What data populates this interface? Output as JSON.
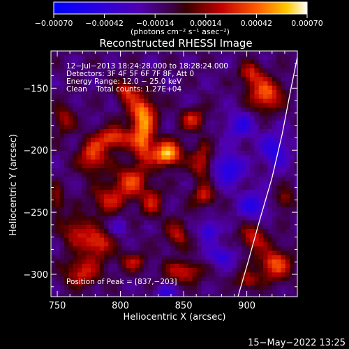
{
  "chart_data": {
    "type": "heatmap",
    "title": "Reconstructed RHESSI Image",
    "xlabel": "Heliocentric X (arcsec)",
    "ylabel": "Heliocentric Y (arcsec)",
    "xlim": [
      745,
      940
    ],
    "ylim": [
      -318,
      -120
    ],
    "x_ticks": [
      750,
      800,
      850,
      900
    ],
    "y_ticks": [
      -150,
      -200,
      -250,
      -300
    ],
    "x_tick_labels": [
      "750",
      "800",
      "850",
      "900"
    ],
    "y_tick_labels": [
      "−150",
      "−200",
      "−250",
      "−300"
    ],
    "colorbar": {
      "range": [
        -0.0007,
        0.0007
      ],
      "tick_values": [
        -0.0007,
        -0.00042,
        -0.00014,
        0.00014,
        0.00042,
        0.0007
      ],
      "tick_labels": [
        "−0.00070",
        "−0.00042",
        "−0.00014",
        "0.00014",
        "0.00042",
        "0.00070"
      ],
      "units_label": "(photons cm⁻² s⁻¹ asec⁻²)"
    },
    "annotations": [
      "12−Jul−2013 18:24:28.000 to 18:28:24.000",
      "Detectors: 3F 4F 5F 6F 7F 8F, Att 0",
      "Energy Range: 12.0 − 25.0 keV",
      "Clean    Total counts: 1.27E+04"
    ],
    "peak_label": "Position of Peak = [837,−203]",
    "peak": {
      "x": 837,
      "y": -203
    },
    "limb_arc": [
      [
        893,
        -318
      ],
      [
        901,
        -290
      ],
      [
        910,
        -257
      ],
      [
        920,
        -222
      ],
      [
        928,
        -187
      ],
      [
        935,
        -150
      ],
      [
        940,
        -125
      ]
    ],
    "sources": [
      {
        "x": 837,
        "y": -203,
        "sx": 8,
        "sy": 7,
        "amp": 0.00072
      },
      {
        "x": 818,
        "y": -190,
        "sx": 6,
        "sy": 14,
        "amp": 0.00055
      },
      {
        "x": 795,
        "y": -190,
        "sx": 10,
        "sy": 6,
        "amp": 0.0005
      },
      {
        "x": 778,
        "y": -205,
        "sx": 8,
        "sy": 9,
        "amp": 0.00048
      },
      {
        "x": 808,
        "y": -225,
        "sx": 9,
        "sy": 9,
        "amp": 0.00045
      },
      {
        "x": 817,
        "y": -168,
        "sx": 8,
        "sy": 9,
        "amp": 0.00045
      },
      {
        "x": 805,
        "y": -152,
        "sx": 6,
        "sy": 6,
        "amp": 0.0004
      },
      {
        "x": 857,
        "y": -175,
        "sx": 7,
        "sy": 6,
        "amp": 0.00038
      },
      {
        "x": 865,
        "y": -210,
        "sx": 6,
        "sy": 10,
        "amp": 0.0004
      },
      {
        "x": 866,
        "y": -237,
        "sx": 6,
        "sy": 6,
        "amp": 0.00038
      },
      {
        "x": 845,
        "y": -268,
        "sx": 6,
        "sy": 8,
        "amp": 0.00035
      },
      {
        "x": 825,
        "y": -242,
        "sx": 6,
        "sy": 8,
        "amp": 0.00035
      },
      {
        "x": 790,
        "y": -240,
        "sx": 10,
        "sy": 8,
        "amp": 0.00035
      },
      {
        "x": 782,
        "y": -275,
        "sx": 8,
        "sy": 8,
        "amp": 0.00045
      },
      {
        "x": 765,
        "y": -265,
        "sx": 8,
        "sy": 9,
        "amp": 0.00035
      },
      {
        "x": 810,
        "y": -290,
        "sx": 8,
        "sy": 6,
        "amp": 0.00032
      },
      {
        "x": 850,
        "y": -298,
        "sx": 10,
        "sy": 6,
        "amp": 0.0004
      },
      {
        "x": 770,
        "y": -298,
        "sx": 10,
        "sy": 8,
        "amp": 0.0004
      },
      {
        "x": 750,
        "y": -240,
        "sx": 4,
        "sy": 8,
        "amp": 0.0003
      },
      {
        "x": 755,
        "y": -175,
        "sx": 6,
        "sy": 8,
        "amp": 0.0003
      },
      {
        "x": 915,
        "y": -155,
        "sx": 9,
        "sy": 9,
        "amp": 0.00055
      },
      {
        "x": 903,
        "y": -138,
        "sx": 6,
        "sy": 6,
        "amp": 0.0004
      },
      {
        "x": 922,
        "y": -292,
        "sx": 9,
        "sy": 9,
        "amp": 0.0005
      },
      {
        "x": 905,
        "y": -270,
        "sx": 7,
        "sy": 8,
        "amp": 0.0004
      },
      {
        "x": 930,
        "y": -240,
        "sx": 5,
        "sy": 6,
        "amp": 0.0003
      },
      {
        "x": 900,
        "y": -305,
        "sx": 6,
        "sy": 5,
        "amp": 0.00035
      },
      {
        "x": 870,
        "y": -265,
        "sx": 5,
        "sy": 6,
        "amp": -0.00035
      },
      {
        "x": 885,
        "y": -215,
        "sx": 9,
        "sy": 9,
        "amp": -0.0004
      },
      {
        "x": 895,
        "y": -180,
        "sx": 8,
        "sy": 8,
        "amp": -0.0003
      },
      {
        "x": 905,
        "y": -245,
        "sx": 8,
        "sy": 8,
        "amp": -0.00035
      },
      {
        "x": 922,
        "y": -200,
        "sx": 8,
        "sy": 10,
        "amp": -0.00035
      },
      {
        "x": 880,
        "y": -285,
        "sx": 8,
        "sy": 6,
        "amp": -0.0003
      },
      {
        "x": 835,
        "y": -315,
        "sx": 6,
        "sy": 4,
        "amp": -0.0003
      },
      {
        "x": 800,
        "y": -262,
        "sx": 5,
        "sy": 5,
        "amp": -0.0002
      }
    ]
  },
  "footer": {
    "timestamp": "15−May−2022 13:25"
  }
}
